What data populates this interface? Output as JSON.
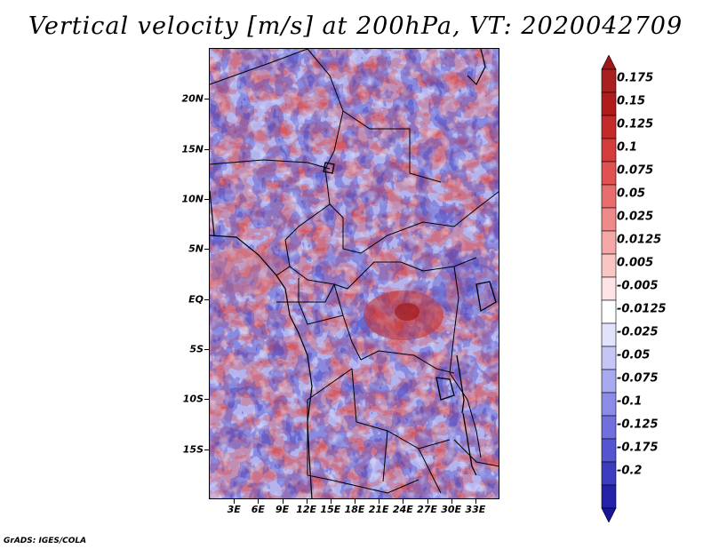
{
  "title": "Vertical velocity [m/s] at 200hPa, VT: 2020042709",
  "credit": "GrADS: IGES/COLA",
  "map": {
    "lon_range": [
      0,
      36
    ],
    "lat_range": [
      -20,
      25
    ],
    "lat_ticks": [
      {
        "value": 20,
        "label": "20N"
      },
      {
        "value": 15,
        "label": "15N"
      },
      {
        "value": 10,
        "label": "10N"
      },
      {
        "value": 5,
        "label": "5N"
      },
      {
        "value": 0,
        "label": "EQ"
      },
      {
        "value": -5,
        "label": "5S"
      },
      {
        "value": -10,
        "label": "10S"
      },
      {
        "value": -15,
        "label": "15S"
      }
    ],
    "lon_ticks": [
      {
        "value": 3,
        "label": "3E"
      },
      {
        "value": 6,
        "label": "6E"
      },
      {
        "value": 9,
        "label": "9E"
      },
      {
        "value": 12,
        "label": "12E"
      },
      {
        "value": 15,
        "label": "15E"
      },
      {
        "value": 18,
        "label": "18E"
      },
      {
        "value": 21,
        "label": "21E"
      },
      {
        "value": 24,
        "label": "24E"
      },
      {
        "value": 27,
        "label": "27E"
      },
      {
        "value": 30,
        "label": "30E"
      },
      {
        "value": 33,
        "label": "33E"
      }
    ]
  },
  "colorbar": {
    "levels": [
      {
        "label": "0.175",
        "color": "#b01c1c"
      },
      {
        "label": "0.15",
        "color": "#c52a2a"
      },
      {
        "label": "0.125",
        "color": "#d43c3c"
      },
      {
        "label": "0.1",
        "color": "#e05252"
      },
      {
        "label": "0.075",
        "color": "#e86d6d"
      },
      {
        "label": "0.05",
        "color": "#ef8a8a"
      },
      {
        "label": "0.025",
        "color": "#f5a8a8"
      },
      {
        "label": "0.0125",
        "color": "#f9c6c6"
      },
      {
        "label": "0.005",
        "color": "#fde3e3"
      },
      {
        "label": "-0.005",
        "color": "#ffffff"
      },
      {
        "label": "-0.0125",
        "color": "#e2e2fb"
      },
      {
        "label": "-0.025",
        "color": "#c6c6f6"
      },
      {
        "label": "-0.05",
        "color": "#a9a9f0"
      },
      {
        "label": "-0.075",
        "color": "#8c8ce8"
      },
      {
        "label": "-0.1",
        "color": "#6f6fdd"
      },
      {
        "label": "-0.125",
        "color": "#5555d0"
      },
      {
        "label": "-0.175",
        "color": "#3c3cbe"
      },
      {
        "label": "-0.2",
        "color": "#2323a8"
      }
    ],
    "top_extend_color": "#a01818",
    "bottom_extend_color": "#16169a"
  }
}
